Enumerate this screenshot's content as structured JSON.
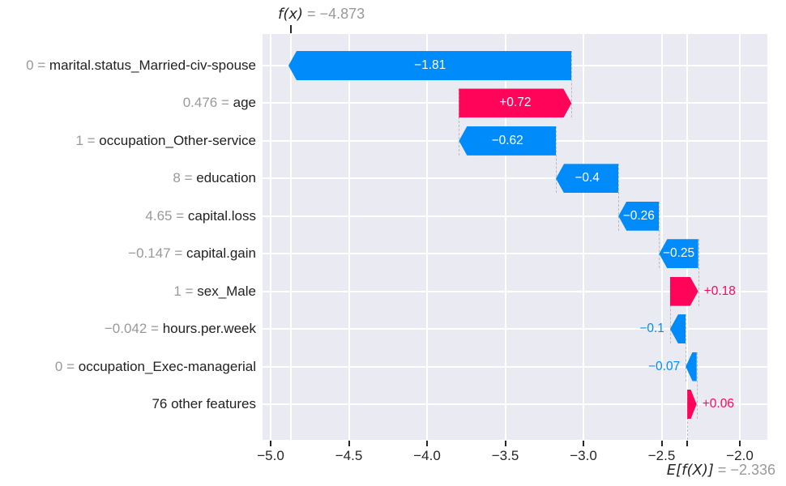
{
  "header": {
    "fx_math": "f(x)",
    "fx_eq_value": " = −4.873"
  },
  "footer": {
    "ef_math": "E[f(X)]",
    "ef_eq_value": " = −2.336"
  },
  "chart_data": {
    "type": "bar",
    "variant": "shap-waterfall",
    "title": "",
    "xlabel": "",
    "ylabel": "",
    "fx_value": -4.873,
    "base_value": -2.336,
    "xlim": [
      -5.06,
      -1.82
    ],
    "grid": true,
    "legend": "none",
    "x_ticks": [
      {
        "value": -5.0,
        "label": "−5.0"
      },
      {
        "value": -4.5,
        "label": "−4.5"
      },
      {
        "value": -4.0,
        "label": "−4.0"
      },
      {
        "value": -3.5,
        "label": "−3.5"
      },
      {
        "value": -3.0,
        "label": "−3.0"
      },
      {
        "value": -2.5,
        "label": "−2.5"
      },
      {
        "value": -2.0,
        "label": "−2.0"
      }
    ],
    "rows": [
      {
        "feature": "marital.status_Married-civ-spouse",
        "value_label": "0",
        "shap": -1.81,
        "shap_label": "−1.81",
        "label_pos": "inside"
      },
      {
        "feature": "age",
        "value_label": "0.476",
        "shap": 0.72,
        "shap_label": "+0.72",
        "label_pos": "inside"
      },
      {
        "feature": "occupation_Other-service",
        "value_label": "1",
        "shap": -0.62,
        "shap_label": "−0.62",
        "label_pos": "inside"
      },
      {
        "feature": "education",
        "value_label": "8",
        "shap": -0.4,
        "shap_label": "−0.4",
        "label_pos": "inside"
      },
      {
        "feature": "capital.loss",
        "value_label": "4.65",
        "shap": -0.26,
        "shap_label": "−0.26",
        "label_pos": "inside"
      },
      {
        "feature": "capital.gain",
        "value_label": "−0.147",
        "shap": -0.25,
        "shap_label": "−0.25",
        "label_pos": "inside"
      },
      {
        "feature": "sex_Male",
        "value_label": "1",
        "shap": 0.18,
        "shap_label": "+0.18",
        "label_pos": "right"
      },
      {
        "feature": "hours.per.week",
        "value_label": "−0.042",
        "shap": -0.1,
        "shap_label": "−0.1",
        "label_pos": "left"
      },
      {
        "feature": "occupation_Exec-managerial",
        "value_label": "0",
        "shap": -0.07,
        "shap_label": "−0.07",
        "label_pos": "left"
      },
      {
        "feature": "76 other features",
        "value_label": "",
        "shap": 0.06,
        "shap_label": "+0.06",
        "label_pos": "right"
      }
    ],
    "equals_separator": " = ",
    "colors": {
      "positive": "#ff0458",
      "negative": "#008bfb",
      "plot_bg": "#eaeaf2",
      "gridline": "#ffffff",
      "connector": "#bbbbbb",
      "muted_text": "#999999",
      "text": "#262626"
    }
  }
}
